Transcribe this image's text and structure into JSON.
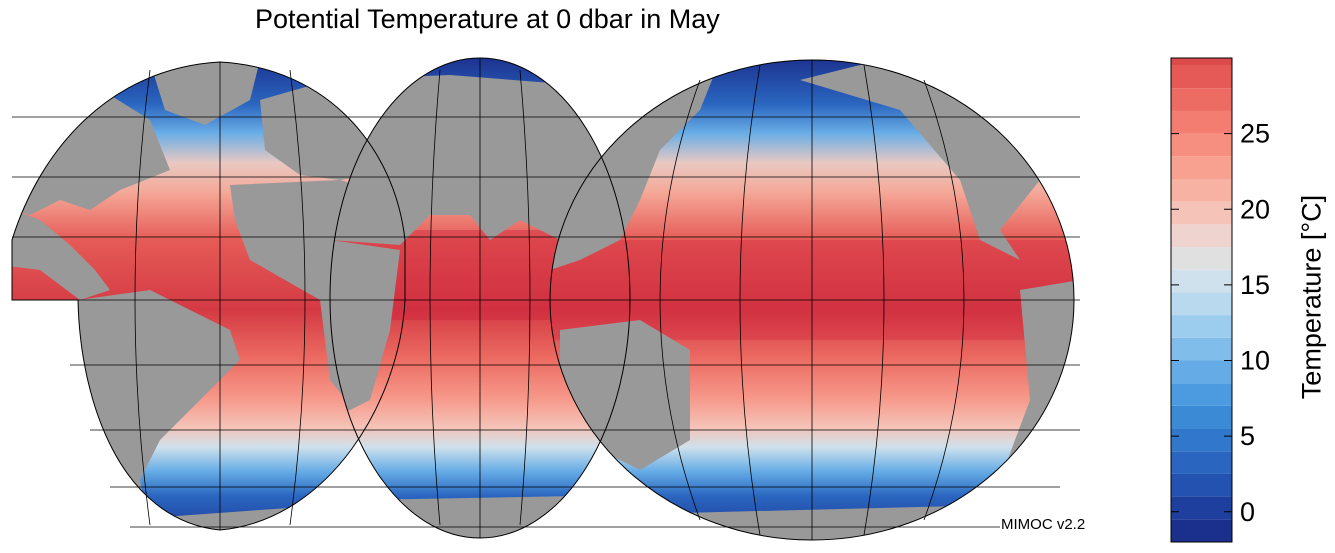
{
  "title": "Potential Temperature at 0 dbar in May",
  "credit": "MIMOC v2.2",
  "colorbar": {
    "label": "Temperature [°C]",
    "min": -2,
    "max": 30,
    "step": 1.5,
    "ticks": [
      0,
      5,
      10,
      15,
      20,
      25
    ],
    "palette": [
      "#1b2f8c",
      "#1f3f9e",
      "#2452b0",
      "#2a66c0",
      "#3178cc",
      "#3a8ad6",
      "#4c9be0",
      "#65ace6",
      "#80bdeb",
      "#9cccee",
      "#b8d9ee",
      "#cfe1ec",
      "#e0e0e0",
      "#efd3cf",
      "#f5c3b8",
      "#f8b2a3",
      "#f8a190",
      "#f68f7f",
      "#f27d70",
      "#ec6b62",
      "#e55a56",
      "#dd4a4c",
      "#d43a44",
      "#cc1e3a"
    ]
  },
  "map": {
    "land_color": "#999999",
    "grid": true,
    "projection": "interrupted-globe"
  }
}
